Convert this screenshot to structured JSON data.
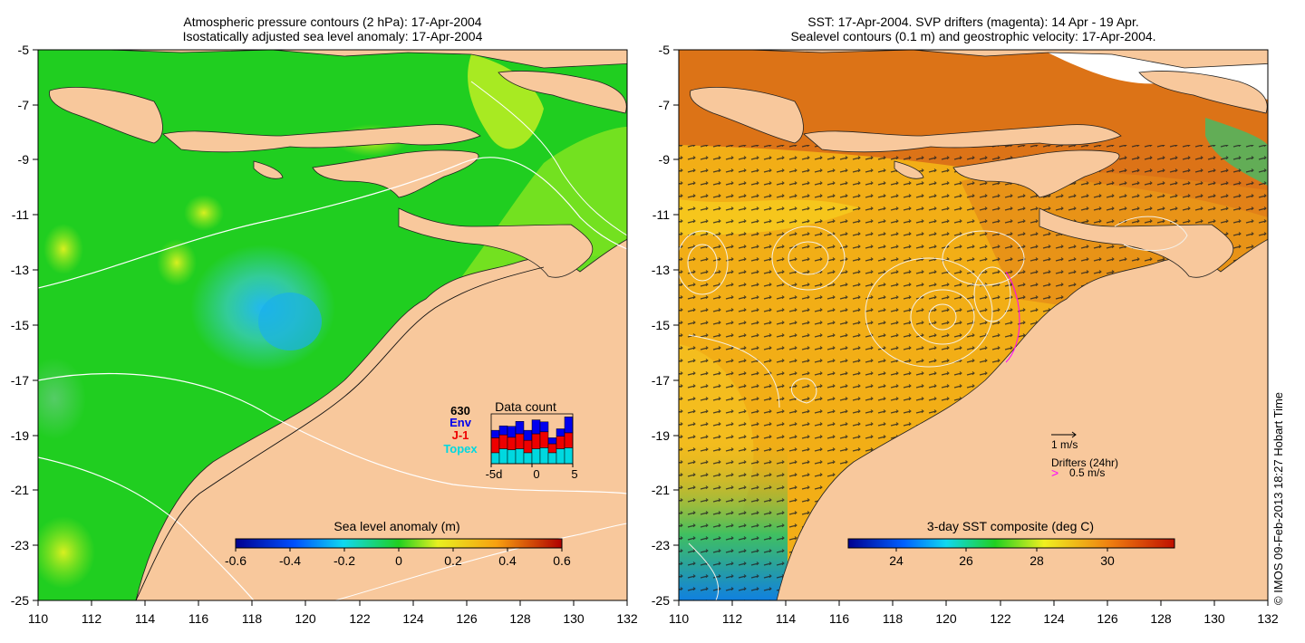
{
  "left_panel": {
    "title_line1": "Atmospheric pressure contours (2 hPa): 17-Apr-2004",
    "title_line2": "Isostatically adjusted sea level anomaly: 17-Apr-2004",
    "colorbar_label": "Sea level anomaly (m)",
    "colorbar_ticks": [
      "-0.6",
      "-0.4",
      "-0.2",
      "0",
      "0.2",
      "0.4",
      "0.6"
    ],
    "inset": {
      "title": "Data count",
      "total": "630",
      "missions": [
        {
          "name": "Env",
          "color": "#0000ee"
        },
        {
          "name": "J-1",
          "color": "#ee0000"
        },
        {
          "name": "Topex",
          "color": "#00d8e0"
        }
      ],
      "x_ticks": [
        "-5d",
        "0",
        "5"
      ],
      "bars": [
        {
          "topex": 0.22,
          "j1": 0.3,
          "env": 0.15
        },
        {
          "topex": 0.3,
          "j1": 0.28,
          "env": 0.18
        },
        {
          "topex": 0.28,
          "j1": 0.25,
          "env": 0.22
        },
        {
          "topex": 0.3,
          "j1": 0.3,
          "env": 0.25
        },
        {
          "topex": 0.22,
          "j1": 0.25,
          "env": 0.2
        },
        {
          "topex": 0.3,
          "j1": 0.3,
          "env": 0.28
        },
        {
          "topex": 0.32,
          "j1": 0.32,
          "env": 0.2
        },
        {
          "topex": 0.22,
          "j1": 0.18,
          "env": 0.12
        },
        {
          "topex": 0.3,
          "j1": 0.25,
          "env": 0.15
        },
        {
          "topex": 0.32,
          "j1": 0.3,
          "env": 0.32
        }
      ]
    }
  },
  "right_panel": {
    "title_line1": "SST: 17-Apr-2004. SVP drifters (magenta): 14 Apr - 19 Apr.",
    "title_line2": "Sealevel contours (0.1 m) and geostrophic velocity: 17-Apr-2004.",
    "colorbar_label": "3-day SST composite (deg C)",
    "colorbar_ticks": [
      "24",
      "26",
      "28",
      "30"
    ],
    "legend_velocity": "1 m/s",
    "legend_drifters": "Drifters (24hr)",
    "legend_drifter_speed": "0.5 m/s",
    "drifter_color": "#ff00ff"
  },
  "axes": {
    "lat_ticks": [
      "-5",
      "-7",
      "-9",
      "-11",
      "-13",
      "-15",
      "-17",
      "-19",
      "-21",
      "-23",
      "-25"
    ],
    "lon_ticks": [
      "110",
      "112",
      "114",
      "116",
      "118",
      "120",
      "122",
      "124",
      "126",
      "128",
      "130",
      "132"
    ]
  },
  "credit": "© IMOS 09-Feb-2013 18:27 Hobart Time",
  "colors": {
    "land": "#f8c89c",
    "ocean_left": "#22d422",
    "ocean_right": "#f2ae16"
  }
}
